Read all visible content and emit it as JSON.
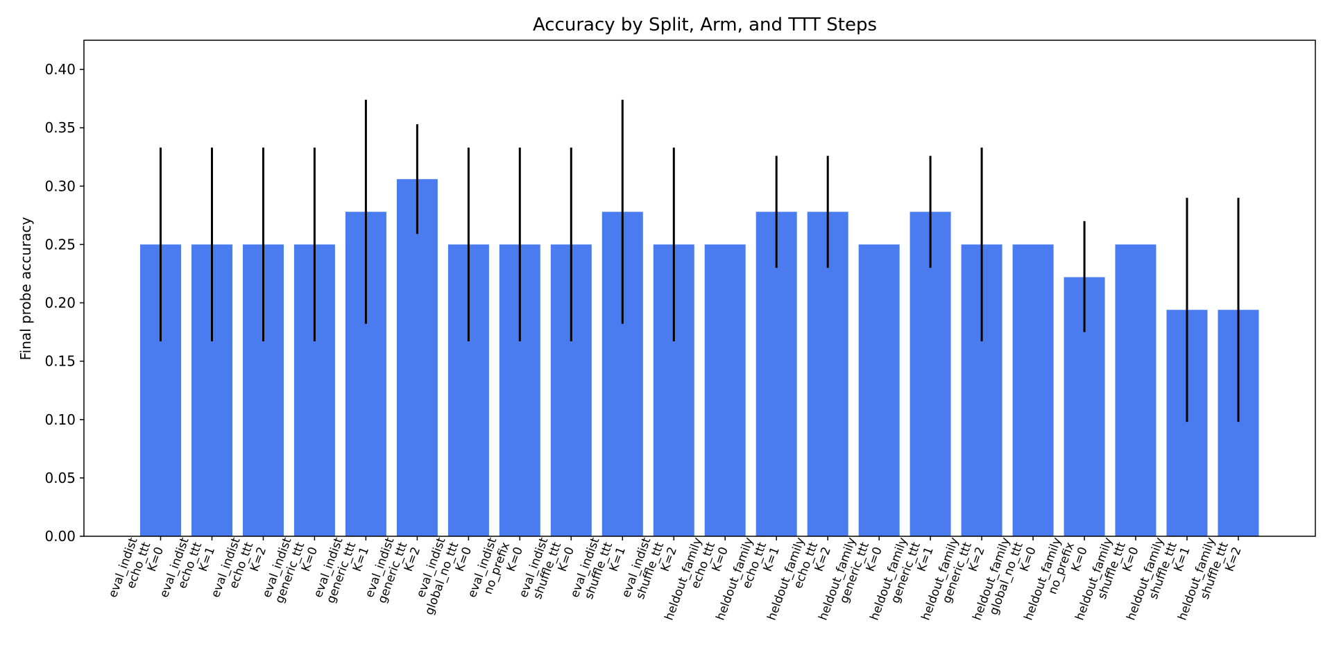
{
  "chart_data": {
    "type": "bar",
    "title": "Accuracy by Split, Arm, and TTT Steps",
    "xlabel": "",
    "ylabel": "Final probe accuracy",
    "ylim": [
      0,
      0.425
    ],
    "yticks": [
      "0.00",
      "0.05",
      "0.10",
      "0.15",
      "0.20",
      "0.25",
      "0.30",
      "0.35",
      "0.40"
    ],
    "bar_color": "#4a7cf0",
    "error_color": "#000000",
    "grid": false,
    "categories": [
      [
        "eval_indist",
        "echo_ttt",
        "K=0"
      ],
      [
        "eval_indist",
        "echo_ttt",
        "K=1"
      ],
      [
        "eval_indist",
        "echo_ttt",
        "K=2"
      ],
      [
        "eval_indist",
        "generic_ttt",
        "K=0"
      ],
      [
        "eval_indist",
        "generic_ttt",
        "K=1"
      ],
      [
        "eval_indist",
        "generic_ttt",
        "K=2"
      ],
      [
        "eval_indist",
        "global_no_ttt",
        "K=0"
      ],
      [
        "eval_indist",
        "no_prefix",
        "K=0"
      ],
      [
        "eval_indist",
        "shuffle_ttt",
        "K=0"
      ],
      [
        "eval_indist",
        "shuffle_ttt",
        "K=1"
      ],
      [
        "eval_indist",
        "shuffle_ttt",
        "K=2"
      ],
      [
        "heldout_family",
        "echo_ttt",
        "K=0"
      ],
      [
        "heldout_family",
        "echo_ttt",
        "K=1"
      ],
      [
        "heldout_family",
        "echo_ttt",
        "K=2"
      ],
      [
        "heldout_family",
        "generic_ttt",
        "K=0"
      ],
      [
        "heldout_family",
        "generic_ttt",
        "K=1"
      ],
      [
        "heldout_family",
        "generic_ttt",
        "K=2"
      ],
      [
        "heldout_family",
        "global_no_ttt",
        "K=0"
      ],
      [
        "heldout_family",
        "no_prefix",
        "K=0"
      ],
      [
        "heldout_family",
        "shuffle_ttt",
        "K=0"
      ],
      [
        "heldout_family",
        "shuffle_ttt",
        "K=1"
      ],
      [
        "heldout_family",
        "shuffle_ttt",
        "K=2"
      ]
    ],
    "values": [
      0.25,
      0.25,
      0.25,
      0.25,
      0.278,
      0.306,
      0.25,
      0.25,
      0.25,
      0.278,
      0.25,
      0.25,
      0.278,
      0.278,
      0.25,
      0.278,
      0.25,
      0.25,
      0.222,
      0.25,
      0.194,
      0.194
    ],
    "error_low": [
      0.167,
      0.167,
      0.167,
      0.167,
      0.182,
      0.259,
      0.167,
      0.167,
      0.167,
      0.182,
      0.167,
      0.25,
      0.23,
      0.23,
      0.25,
      0.23,
      0.167,
      0.25,
      0.175,
      0.25,
      0.098,
      0.098
    ],
    "error_high": [
      0.333,
      0.333,
      0.333,
      0.333,
      0.374,
      0.353,
      0.333,
      0.333,
      0.333,
      0.374,
      0.333,
      0.25,
      0.326,
      0.326,
      0.25,
      0.326,
      0.333,
      0.25,
      0.27,
      0.25,
      0.29,
      0.29
    ]
  }
}
